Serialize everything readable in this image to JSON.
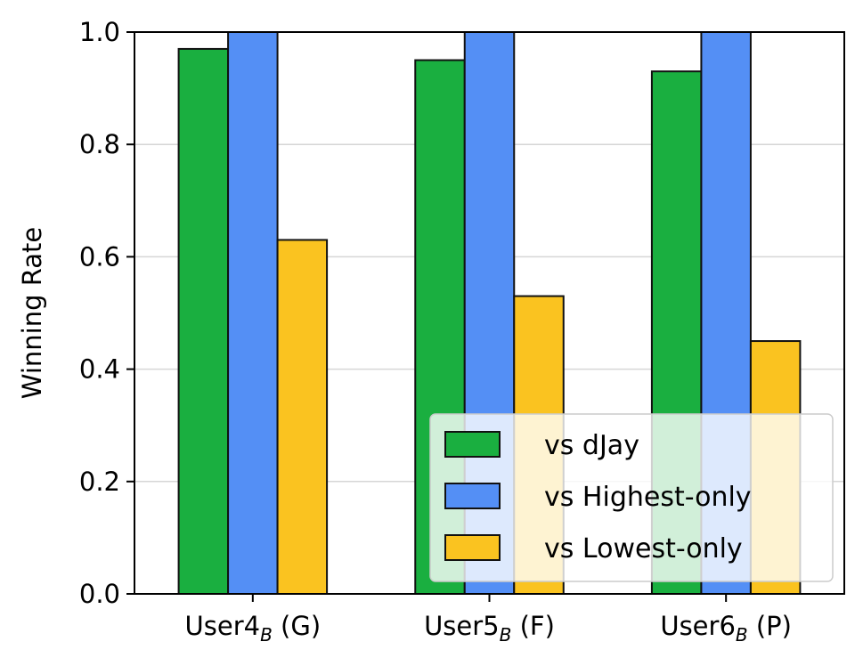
{
  "chart_data": {
    "type": "bar",
    "title": "",
    "xlabel": "",
    "ylabel": "Winning Rate",
    "ylim": [
      0,
      1.0
    ],
    "yticks": [
      0.0,
      0.2,
      0.4,
      0.6,
      0.8,
      1.0
    ],
    "ytick_labels": [
      "0.0",
      "0.2",
      "0.4",
      "0.6",
      "0.8",
      "1.0"
    ],
    "grid": "horizontal",
    "legend_position": "bottom-right",
    "categories": [
      {
        "base": "User4",
        "sub": "B",
        "suffix": " (G)"
      },
      {
        "base": "User5",
        "sub": "B",
        "suffix": " (F)"
      },
      {
        "base": "User6",
        "sub": "B",
        "suffix": " (P)"
      }
    ],
    "series": [
      {
        "name": "vs dJay",
        "color": "#1aaf40",
        "values": [
          0.97,
          0.95,
          0.93
        ]
      },
      {
        "name": "vs Highest-only",
        "color": "#548ff5",
        "values": [
          1.0,
          1.0,
          1.0
        ]
      },
      {
        "name": "vs Lowest-only",
        "color": "#fac320",
        "values": [
          0.63,
          0.53,
          0.45
        ]
      }
    ]
  }
}
